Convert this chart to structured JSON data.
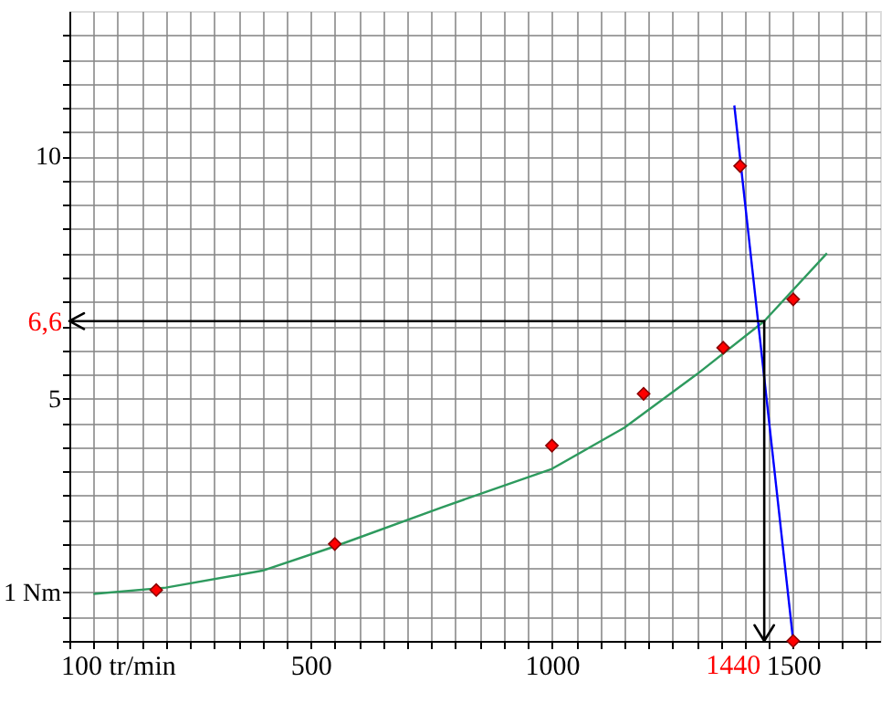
{
  "chart_data": {
    "type": "line",
    "xlim": [
      0,
      1680
    ],
    "ylim": [
      0,
      13
    ],
    "xticks": [
      {
        "value": 0,
        "label": null
      },
      {
        "value": 50,
        "label": null
      },
      {
        "value": 100,
        "label": "100 tr/min"
      },
      {
        "value": 150,
        "label": null
      },
      {
        "value": 200,
        "label": null
      },
      {
        "value": 250,
        "label": null
      },
      {
        "value": 300,
        "label": null
      },
      {
        "value": 350,
        "label": null
      },
      {
        "value": 400,
        "label": null
      },
      {
        "value": 450,
        "label": null
      },
      500,
      {
        "value": 550,
        "label": null
      },
      {
        "value": 600,
        "label": null
      },
      {
        "value": 650,
        "label": null
      },
      {
        "value": 700,
        "label": null
      },
      {
        "value": 750,
        "label": null
      },
      {
        "value": 800,
        "label": null
      },
      {
        "value": 850,
        "label": null
      },
      {
        "value": 900,
        "label": null
      },
      {
        "value": 950,
        "label": null
      },
      1000,
      {
        "value": 1050,
        "label": null
      },
      {
        "value": 1100,
        "label": null
      },
      {
        "value": 1150,
        "label": null
      },
      {
        "value": 1200,
        "label": null
      },
      {
        "value": 1250,
        "label": null
      },
      {
        "value": 1300,
        "label": null
      },
      {
        "value": 1350,
        "label": null
      },
      {
        "value": 1400,
        "label": null
      },
      {
        "value": 1450,
        "label": null
      },
      1500,
      {
        "value": 1550,
        "label": null
      },
      {
        "value": 1600,
        "label": null
      },
      {
        "value": 1650,
        "label": null
      }
    ],
    "yticks": [
      {
        "value": 0,
        "label": null
      },
      {
        "value": 0.5,
        "label": null
      },
      {
        "value": 1,
        "label": "1 Nm"
      },
      {
        "value": 1.5,
        "label": null
      },
      {
        "value": 2,
        "label": null
      },
      {
        "value": 2.5,
        "label": null
      },
      {
        "value": 3,
        "label": null
      },
      {
        "value": 3.5,
        "label": null
      },
      {
        "value": 4,
        "label": null
      },
      {
        "value": 4.5,
        "label": null
      },
      5,
      {
        "value": 5.5,
        "label": null
      },
      {
        "value": 6,
        "label": null
      },
      {
        "value": 6.5,
        "label": null
      },
      {
        "value": 7,
        "label": null
      },
      {
        "value": 7.5,
        "label": null
      },
      {
        "value": 8,
        "label": null
      },
      {
        "value": 8.5,
        "label": null
      },
      {
        "value": 9,
        "label": null
      },
      {
        "value": 9.5,
        "label": null
      },
      10,
      {
        "value": 10.5,
        "label": null
      },
      {
        "value": 11,
        "label": null
      },
      {
        "value": 11.5,
        "label": null
      },
      {
        "value": 12,
        "label": null
      },
      {
        "value": 12.5,
        "label": null
      }
    ],
    "grid": true,
    "series": [
      {
        "color": "#2e9a5e",
        "marker": "none",
        "x": [
          50,
          200,
          400,
          550,
          770,
          1000,
          1150,
          1300,
          1440,
          1570
        ],
        "values": [
          0.97,
          1.1,
          1.45,
          1.95,
          2.75,
          3.55,
          4.4,
          5.5,
          6.6,
          8.0
        ]
      },
      {
        "type": "line",
        "color": "#0000ff",
        "marker": "none",
        "x": [
          1378,
          1500
        ],
        "values": [
          11.05,
          0
        ]
      },
      {
        "type": "scatter",
        "color": "#ff0000",
        "marker": "diamond",
        "x": [
          180,
          550,
          1000,
          1190,
          1355,
          1500,
          1390,
          1500
        ],
        "values": [
          1.05,
          2.0,
          4.03,
          5.1,
          6.05,
          7.05,
          9.8,
          0
        ]
      }
    ],
    "ref_lines": [
      {
        "axis": "y",
        "value": 6.6,
        "label": "6,6",
        "color": "#000000"
      },
      {
        "axis": "x",
        "value": 1440,
        "label": "1440",
        "color": "#000000"
      }
    ]
  }
}
